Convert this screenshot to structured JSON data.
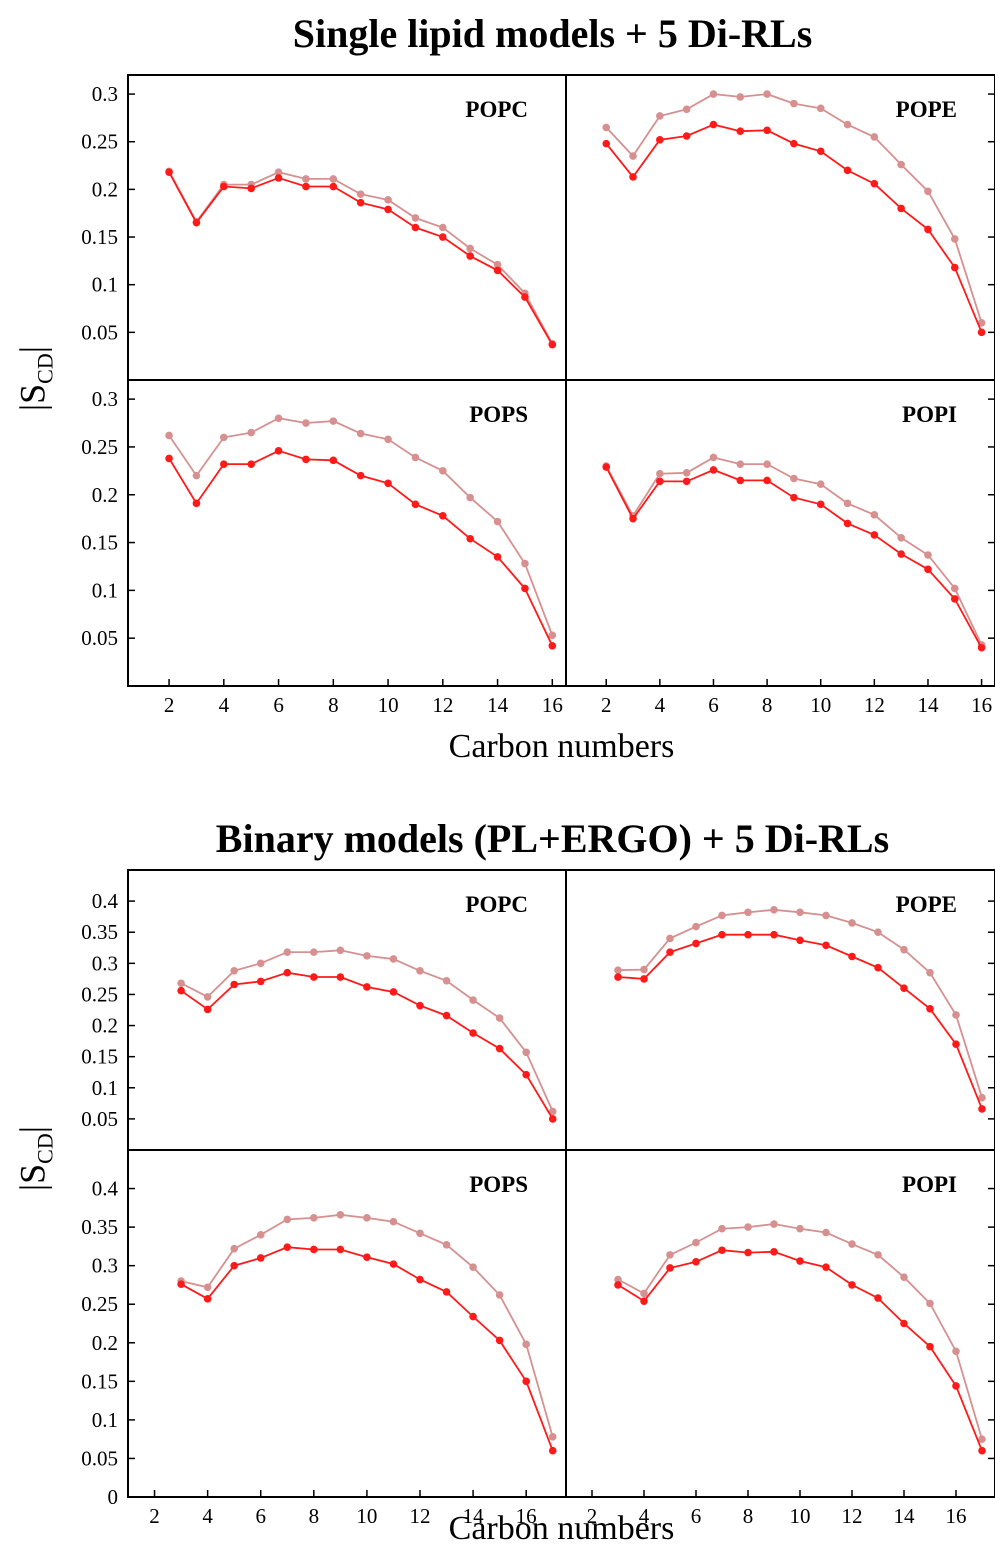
{
  "colors": {
    "dark": "#ff1a1a",
    "light": "#d69090",
    "axis": "#000000"
  },
  "figure": {
    "title_top": "Single lipid models + 5 Di-RLs",
    "title_bottom": "Binary models (PL+ERGO) + 5 Di-RLs",
    "xlabel": "Carbon numbers",
    "ylabel_main": "S",
    "ylabel_sub": "CD"
  },
  "chart_data": [
    {
      "type": "line",
      "group": "Single lipid models + 5 Di-RLs",
      "panel": "POPC",
      "x": [
        2,
        3,
        4,
        5,
        6,
        7,
        8,
        9,
        10,
        11,
        12,
        13,
        14,
        15,
        16
      ],
      "ylim": [
        0,
        0.32
      ],
      "xlim": [
        0.5,
        16.5
      ],
      "yticks": [
        "0.3",
        "0.25",
        "0.2",
        "0.15",
        "0.1",
        "0.05"
      ],
      "xticks": [
        "2",
        "4",
        "6",
        "8",
        "10",
        "12",
        "14",
        "16"
      ],
      "series": [
        {
          "style": "dark",
          "values": [
            0.218,
            0.165,
            0.203,
            0.201,
            0.212,
            0.203,
            0.203,
            0.186,
            0.179,
            0.16,
            0.15,
            0.13,
            0.115,
            0.087,
            0.037
          ]
        },
        {
          "style": "light",
          "values": [
            0.219,
            0.166,
            0.205,
            0.205,
            0.218,
            0.211,
            0.211,
            0.195,
            0.189,
            0.17,
            0.16,
            0.138,
            0.121,
            0.091,
            0.038
          ]
        }
      ]
    },
    {
      "type": "line",
      "group": "Single lipid models + 5 Di-RLs",
      "panel": "POPE",
      "x": [
        2,
        3,
        4,
        5,
        6,
        7,
        8,
        9,
        10,
        11,
        12,
        13,
        14,
        15,
        16
      ],
      "ylim": [
        0,
        0.32
      ],
      "xlim": [
        0.5,
        16.5
      ],
      "yticks": [],
      "xticks": [],
      "series": [
        {
          "style": "dark",
          "values": [
            0.248,
            0.213,
            0.252,
            0.256,
            0.268,
            0.261,
            0.262,
            0.248,
            0.24,
            0.22,
            0.206,
            0.18,
            0.158,
            0.118,
            0.05
          ]
        },
        {
          "style": "light",
          "values": [
            0.265,
            0.235,
            0.277,
            0.284,
            0.3,
            0.297,
            0.3,
            0.29,
            0.285,
            0.268,
            0.255,
            0.226,
            0.198,
            0.148,
            0.06
          ]
        }
      ]
    },
    {
      "type": "line",
      "group": "Single lipid models + 5 Di-RLs",
      "panel": "POPS",
      "x": [
        2,
        3,
        4,
        5,
        6,
        7,
        8,
        9,
        10,
        11,
        12,
        13,
        14,
        15,
        16
      ],
      "ylim": [
        0,
        0.32
      ],
      "xlim": [
        0.5,
        16.5
      ],
      "yticks": [
        "0.3",
        "0.25",
        "0.2",
        "0.15",
        "0.1",
        "0.05"
      ],
      "xticks": [
        "2",
        "4",
        "6",
        "8",
        "10",
        "12",
        "14",
        "16"
      ],
      "series": [
        {
          "style": "dark",
          "values": [
            0.238,
            0.191,
            0.232,
            0.232,
            0.246,
            0.237,
            0.236,
            0.22,
            0.212,
            0.19,
            0.178,
            0.154,
            0.135,
            0.102,
            0.042
          ]
        },
        {
          "style": "light",
          "values": [
            0.262,
            0.22,
            0.26,
            0.265,
            0.28,
            0.275,
            0.277,
            0.264,
            0.258,
            0.239,
            0.225,
            0.197,
            0.172,
            0.128,
            0.053
          ]
        }
      ]
    },
    {
      "type": "line",
      "group": "Single lipid models + 5 Di-RLs",
      "panel": "POPI",
      "x": [
        2,
        3,
        4,
        5,
        6,
        7,
        8,
        9,
        10,
        11,
        12,
        13,
        14,
        15,
        16
      ],
      "ylim": [
        0,
        0.32
      ],
      "xlim": [
        0.5,
        16.5
      ],
      "yticks": [],
      "xticks": [
        "2",
        "4",
        "6",
        "8",
        "10",
        "12",
        "14",
        "16"
      ],
      "series": [
        {
          "style": "dark",
          "values": [
            0.229,
            0.175,
            0.214,
            0.214,
            0.226,
            0.215,
            0.215,
            0.197,
            0.19,
            0.17,
            0.158,
            0.138,
            0.122,
            0.091,
            0.04
          ]
        },
        {
          "style": "light",
          "values": [
            0.23,
            0.178,
            0.222,
            0.223,
            0.239,
            0.232,
            0.232,
            0.217,
            0.211,
            0.191,
            0.179,
            0.155,
            0.137,
            0.102,
            0.043
          ]
        }
      ]
    },
    {
      "type": "line",
      "group": "Binary models (PL+ERGO) + 5 Di-RLs",
      "panel": "POPC",
      "x": [
        3,
        4,
        5,
        6,
        7,
        8,
        9,
        10,
        11,
        12,
        13,
        14,
        15,
        16,
        17
      ],
      "ylim": [
        0,
        0.45
      ],
      "xlim": [
        1,
        17.5
      ],
      "yticks": [
        "0.4",
        "0.35",
        "0.3",
        "0.25",
        "0.2",
        "0.15",
        "0.1",
        "0.05"
      ],
      "xticks": [],
      "series": [
        {
          "style": "dark",
          "values": [
            0.256,
            0.226,
            0.266,
            0.271,
            0.285,
            0.278,
            0.278,
            0.262,
            0.254,
            0.232,
            0.216,
            0.188,
            0.163,
            0.121,
            0.05
          ]
        },
        {
          "style": "light",
          "values": [
            0.268,
            0.246,
            0.288,
            0.3,
            0.318,
            0.318,
            0.321,
            0.312,
            0.307,
            0.288,
            0.272,
            0.241,
            0.212,
            0.157,
            0.062
          ]
        }
      ]
    },
    {
      "type": "line",
      "group": "Binary models (PL+ERGO) + 5 Di-RLs",
      "panel": "POPE",
      "x": [
        3,
        4,
        5,
        6,
        7,
        8,
        9,
        10,
        11,
        12,
        13,
        14,
        15,
        16,
        17
      ],
      "ylim": [
        0,
        0.45
      ],
      "xlim": [
        1,
        17.5
      ],
      "yticks": [],
      "xticks": [],
      "series": [
        {
          "style": "dark",
          "values": [
            0.278,
            0.275,
            0.318,
            0.332,
            0.346,
            0.346,
            0.346,
            0.337,
            0.329,
            0.311,
            0.293,
            0.26,
            0.227,
            0.17,
            0.066
          ]
        },
        {
          "style": "light",
          "values": [
            0.289,
            0.29,
            0.34,
            0.359,
            0.377,
            0.382,
            0.386,
            0.382,
            0.377,
            0.365,
            0.35,
            0.322,
            0.285,
            0.217,
            0.084
          ]
        }
      ]
    },
    {
      "type": "line",
      "group": "Binary models (PL+ERGO) + 5 Di-RLs",
      "panel": "POPS",
      "x": [
        3,
        4,
        5,
        6,
        7,
        8,
        9,
        10,
        11,
        12,
        13,
        14,
        15,
        16,
        17
      ],
      "ylim": [
        0,
        0.45
      ],
      "xlim": [
        1,
        17.5
      ],
      "yticks": [
        "0.4",
        "0.35",
        "0.3",
        "0.25",
        "0.2",
        "0.15",
        "0.1",
        "0.05",
        "0"
      ],
      "xticks": [
        "2",
        "4",
        "6",
        "8",
        "10",
        "12",
        "14",
        "16"
      ],
      "series": [
        {
          "style": "dark",
          "values": [
            0.276,
            0.257,
            0.3,
            0.31,
            0.324,
            0.321,
            0.321,
            0.311,
            0.302,
            0.282,
            0.266,
            0.234,
            0.203,
            0.15,
            0.06
          ]
        },
        {
          "style": "light",
          "values": [
            0.28,
            0.272,
            0.322,
            0.34,
            0.36,
            0.362,
            0.366,
            0.362,
            0.357,
            0.342,
            0.327,
            0.298,
            0.262,
            0.198,
            0.078
          ]
        }
      ]
    },
    {
      "type": "line",
      "group": "Binary models (PL+ERGO) + 5 Di-RLs",
      "panel": "POPI",
      "x": [
        3,
        4,
        5,
        6,
        7,
        8,
        9,
        10,
        11,
        12,
        13,
        14,
        15,
        16,
        17
      ],
      "ylim": [
        0,
        0.45
      ],
      "xlim": [
        1,
        17.5
      ],
      "yticks": [],
      "xticks": [
        "2",
        "4",
        "6",
        "8",
        "10",
        "12",
        "14",
        "16"
      ],
      "series": [
        {
          "style": "dark",
          "values": [
            0.275,
            0.254,
            0.297,
            0.305,
            0.32,
            0.317,
            0.318,
            0.306,
            0.298,
            0.275,
            0.258,
            0.225,
            0.195,
            0.144,
            0.06
          ]
        },
        {
          "style": "light",
          "values": [
            0.282,
            0.264,
            0.314,
            0.33,
            0.348,
            0.35,
            0.354,
            0.348,
            0.343,
            0.328,
            0.314,
            0.285,
            0.251,
            0.189,
            0.075
          ]
        }
      ]
    }
  ]
}
